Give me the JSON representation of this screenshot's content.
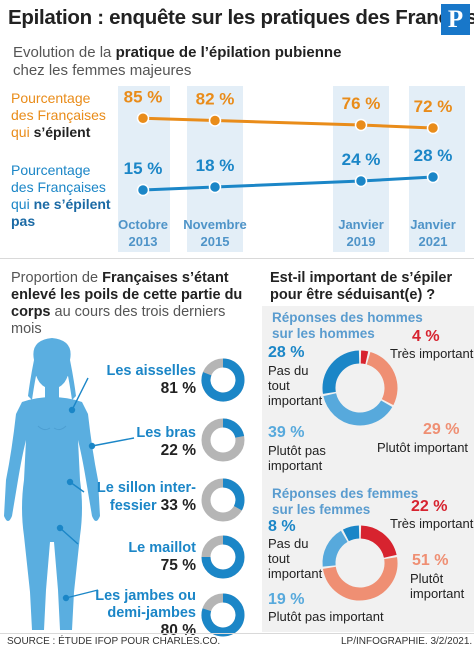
{
  "header": {
    "title": "Epilation : enquête sur les pratiques des Français",
    "logo": "P"
  },
  "section1": {
    "subtitle_a": "Evolution de la ",
    "subtitle_b": "pratique de l’épilation pubienne",
    "subtitle_c": "chez les femmes majeures",
    "legend_orange_line1": "Pourcentage",
    "legend_orange_line2": "des Françaises",
    "legend_orange_line3a": "qui ",
    "legend_orange_line3b": "s’épilent",
    "legend_blue_line1": "Pourcentage",
    "legend_blue_line2": "des Françaises",
    "legend_blue_line3a": "qui ",
    "legend_blue_line3b": "ne s’épilent",
    "legend_blue_line4": "pas"
  },
  "section2": {
    "intro_a": "Proportion de ",
    "intro_b": "Françaises s’étant enlevé les poils de cette partie du corps",
    "intro_c": " au cours des trois derniers mois"
  },
  "section3": {
    "title": "Est-il important de s’épiler pour être séduisant(e) ?"
  },
  "footer": {
    "source": "SOURCE : ÉTUDE IFOP POUR CHARLES.CO.",
    "credit": "LP/INFOGRAPHIE.  3/2/2021."
  },
  "colors": {
    "orange": "#e98c1a",
    "blue": "#1b86c7",
    "red": "#d7232f",
    "salmon": "#ef8f73",
    "light_blue": "#57a9dc",
    "grey": "#b5b5b5",
    "body": "#5aaee0"
  },
  "chart_data": [
    {
      "type": "line",
      "x": [
        "Octobre 2013",
        "Novembre 2015",
        "Janvier 2019",
        "Janvier 2021"
      ],
      "x_labels": [
        {
          "line1": "Octobre",
          "line2": "2013"
        },
        {
          "line1": "Novembre",
          "line2": "2015"
        },
        {
          "line1": "Janvier",
          "line2": "2019"
        },
        {
          "line1": "Janvier",
          "line2": "2021"
        }
      ],
      "series": [
        {
          "name": "Pourcentage des Françaises qui s’épilent",
          "values": [
            85,
            82,
            76,
            72
          ],
          "labels": [
            "85 %",
            "82 %",
            "76 %",
            "72 %"
          ],
          "color": "#e98c1a"
        },
        {
          "name": "Pourcentage des Françaises qui ne s’épilent pas",
          "values": [
            15,
            18,
            24,
            28
          ],
          "labels": [
            "15 %",
            "18 %",
            "24 %",
            "28 %"
          ],
          "color": "#1b86c7"
        }
      ]
    },
    {
      "type": "pie",
      "items": [
        {
          "label": "Les aisselles",
          "value": 81,
          "text": "81 %"
        },
        {
          "label": "Les bras",
          "value": 22,
          "text": "22 %"
        },
        {
          "label": "Le sillon inter-fessier",
          "label_line1": "Le sillon inter-",
          "label_line2": "fessier",
          "value": 33,
          "text": "33 %"
        },
        {
          "label": "Le maillot",
          "value": 75,
          "text": "75 %"
        },
        {
          "label": "Les jambes ou demi-jambes",
          "label_line1": "Les jambes ou",
          "label_line2": "demi-jambes",
          "value": 80,
          "text": "80 %"
        }
      ]
    },
    {
      "type": "pie",
      "title": "Réponses des hommes sur les hommes",
      "title_line1": "Réponses des hommes",
      "title_line2": "sur les hommes",
      "slices": [
        {
          "label": "Très important",
          "value": 4,
          "text": "4 %",
          "color": "#d7232f"
        },
        {
          "label": "Plutôt important",
          "value": 29,
          "text": "29 %",
          "color": "#ef8f73"
        },
        {
          "label": "Plutôt pas important",
          "value": 39,
          "text": "39 %",
          "color": "#57a9dc"
        },
        {
          "label": "Pas du tout important",
          "value": 28,
          "text": "28 %",
          "color": "#1b86c7"
        }
      ]
    },
    {
      "type": "pie",
      "title": "Réponses des femmes sur les femmes",
      "title_line1": "Réponses des femmes",
      "title_line2": "sur les femmes",
      "slices": [
        {
          "label": "Très important",
          "value": 22,
          "text": "22 %",
          "color": "#d7232f"
        },
        {
          "label": "Plutôt important",
          "value": 51,
          "text": "51 %",
          "color": "#ef8f73"
        },
        {
          "label": "Plutôt pas important",
          "value": 19,
          "text": "19 %",
          "color": "#57a9dc"
        },
        {
          "label": "Pas du tout important",
          "value": 8,
          "text": "8 %",
          "color": "#1b86c7"
        }
      ]
    }
  ]
}
